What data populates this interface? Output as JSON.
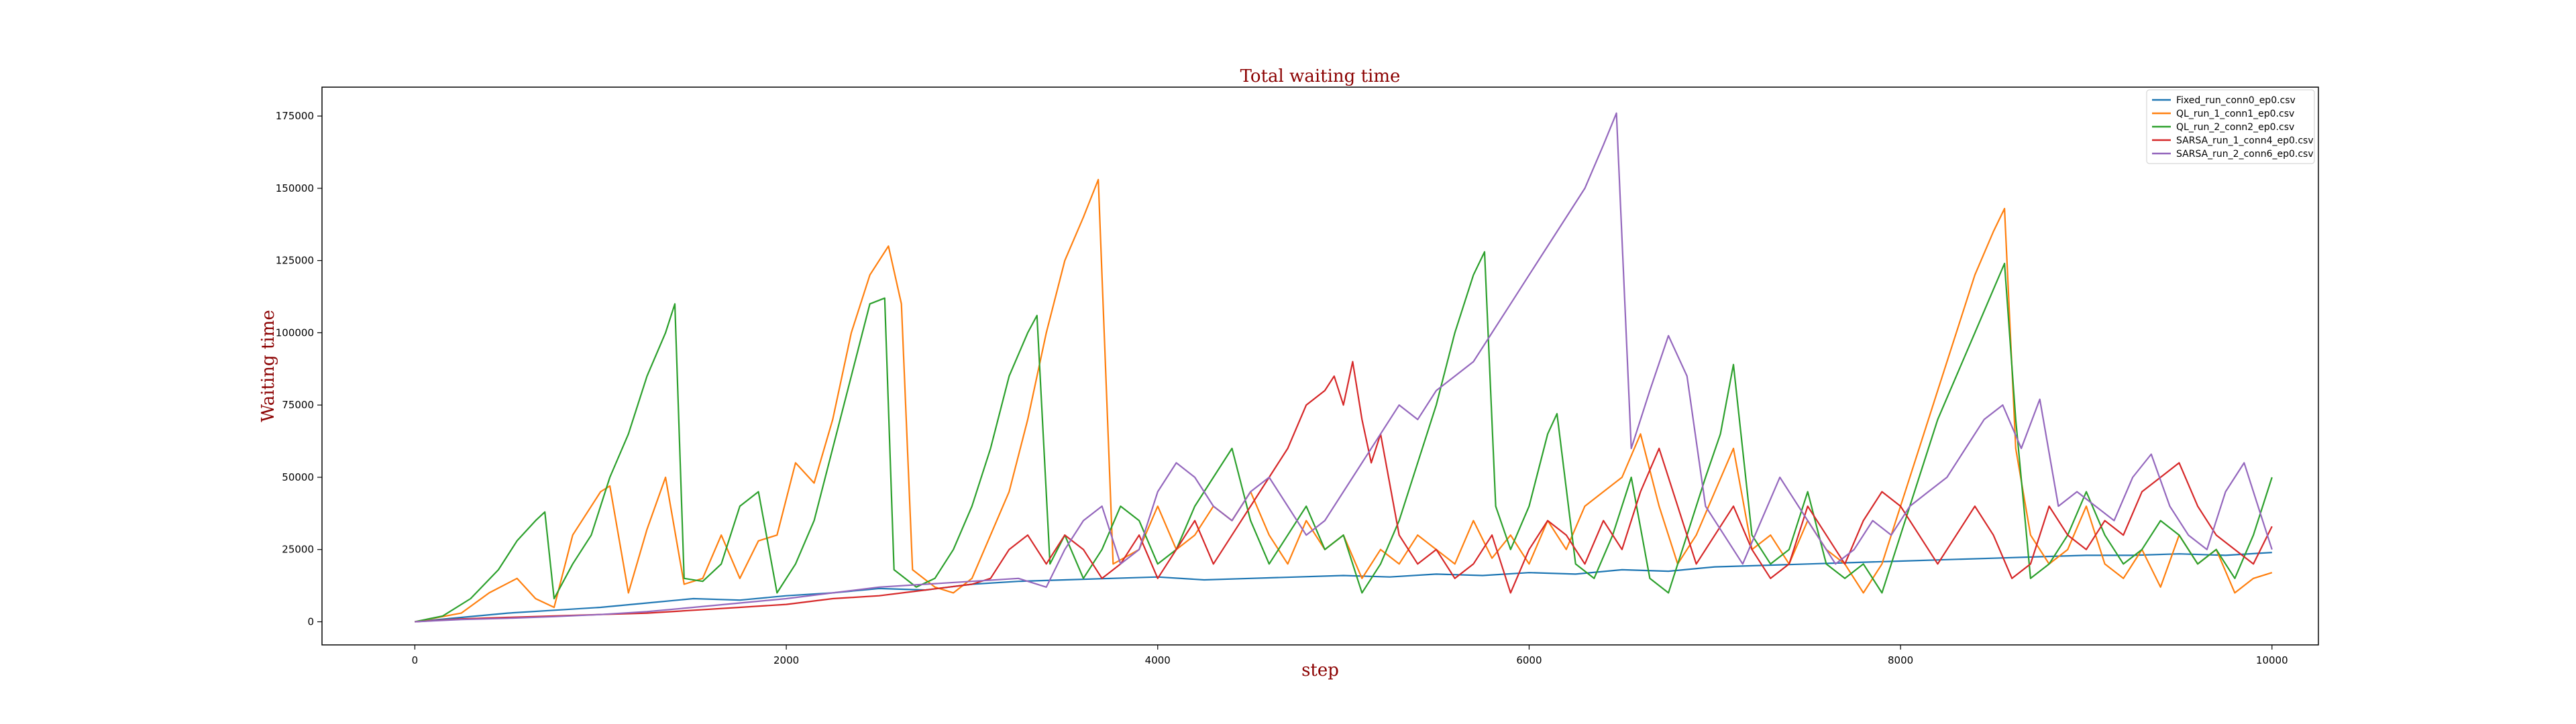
{
  "chart_data": {
    "type": "line",
    "title": "Total waiting time",
    "xlabel": "step",
    "ylabel": "Waiting time",
    "xlim": [
      -500,
      10250
    ],
    "ylim": [
      -8000,
      185000
    ],
    "xticks": [
      0,
      2000,
      4000,
      6000,
      8000,
      10000
    ],
    "yticks": [
      0,
      25000,
      50000,
      75000,
      100000,
      125000,
      150000,
      175000
    ],
    "grid": false,
    "legend_position": "top-right",
    "series": [
      {
        "name": "Fixed_run_conn0_ep0.csv",
        "color": "#1f77b4",
        "x": [
          0,
          250,
          500,
          750,
          1000,
          1250,
          1500,
          1750,
          2000,
          2250,
          2500,
          2750,
          3000,
          3250,
          3500,
          3750,
          4000,
          4250,
          4500,
          4750,
          5000,
          5250,
          5500,
          5750,
          6000,
          6250,
          6500,
          6750,
          7000,
          7250,
          7500,
          7750,
          8000,
          8250,
          8500,
          8750,
          9000,
          9250,
          9500,
          9750,
          10000
        ],
        "y": [
          0,
          1500,
          3000,
          4000,
          5000,
          6500,
          8000,
          7500,
          9000,
          10000,
          11500,
          11000,
          13000,
          14000,
          14500,
          15000,
          15500,
          14500,
          15000,
          15500,
          16000,
          15500,
          16500,
          16000,
          17000,
          16500,
          18000,
          17500,
          19000,
          19500,
          20000,
          20500,
          21000,
          21500,
          22000,
          22500,
          23000,
          23000,
          23500,
          23000,
          24000
        ]
      },
      {
        "name": "QL_run_1_conn1_ep0.csv",
        "color": "#ff7f0e",
        "x": [
          0,
          250,
          400,
          550,
          650,
          750,
          850,
          1000,
          1050,
          1150,
          1250,
          1350,
          1450,
          1550,
          1650,
          1750,
          1850,
          1950,
          2050,
          2150,
          2250,
          2350,
          2450,
          2550,
          2620,
          2680,
          2800,
          2900,
          3000,
          3100,
          3200,
          3300,
          3400,
          3500,
          3600,
          3680,
          3760,
          3900,
          4000,
          4100,
          4200,
          4300,
          4400,
          4500,
          4600,
          4700,
          4800,
          4900,
          5000,
          5100,
          5200,
          5300,
          5400,
          5500,
          5600,
          5700,
          5800,
          5900,
          6000,
          6100,
          6200,
          6300,
          6400,
          6500,
          6600,
          6700,
          6800,
          6900,
          7000,
          7100,
          7200,
          7300,
          7400,
          7500,
          7600,
          7700,
          7800,
          7900,
          8000,
          8100,
          8200,
          8300,
          8400,
          8500,
          8560,
          8620,
          8700,
          8800,
          8900,
          9000,
          9100,
          9200,
          9300,
          9400,
          9500,
          9600,
          9700,
          9800,
          9900,
          10000
        ],
        "y": [
          0,
          3000,
          10000,
          15000,
          8000,
          5000,
          30000,
          45000,
          47000,
          10000,
          32000,
          50000,
          13000,
          15000,
          30000,
          15000,
          28000,
          30000,
          55000,
          48000,
          70000,
          100000,
          120000,
          130000,
          110000,
          18000,
          12000,
          10000,
          15000,
          30000,
          45000,
          70000,
          100000,
          125000,
          140000,
          153000,
          20000,
          25000,
          40000,
          25000,
          30000,
          40000,
          35000,
          45000,
          30000,
          20000,
          35000,
          25000,
          30000,
          15000,
          25000,
          20000,
          30000,
          25000,
          20000,
          35000,
          22000,
          30000,
          20000,
          35000,
          25000,
          40000,
          45000,
          50000,
          65000,
          40000,
          20000,
          30000,
          45000,
          60000,
          25000,
          30000,
          20000,
          35000,
          25000,
          20000,
          10000,
          20000,
          40000,
          60000,
          80000,
          100000,
          120000,
          135000,
          143000,
          60000,
          30000,
          20000,
          25000,
          40000,
          20000,
          15000,
          25000,
          12000,
          30000,
          20000,
          25000,
          10000,
          15000,
          17000
        ]
      },
      {
        "name": "QL_run_2_conn2_ep0.csv",
        "color": "#2ca02c",
        "x": [
          0,
          150,
          300,
          450,
          550,
          650,
          700,
          750,
          850,
          950,
          1050,
          1150,
          1250,
          1350,
          1400,
          1450,
          1550,
          1650,
          1750,
          1850,
          1950,
          2050,
          2150,
          2250,
          2350,
          2450,
          2530,
          2580,
          2700,
          2800,
          2900,
          3000,
          3100,
          3200,
          3300,
          3350,
          3420,
          3500,
          3600,
          3700,
          3800,
          3900,
          4000,
          4100,
          4200,
          4300,
          4400,
          4500,
          4600,
          4700,
          4800,
          4900,
          5000,
          5100,
          5200,
          5300,
          5400,
          5500,
          5600,
          5700,
          5760,
          5820,
          5900,
          6000,
          6100,
          6150,
          6250,
          6350,
          6450,
          6550,
          6650,
          6750,
          6850,
          6950,
          7030,
          7100,
          7200,
          7300,
          7400,
          7500,
          7600,
          7700,
          7800,
          7900,
          8000,
          8100,
          8200,
          8300,
          8400,
          8500,
          8560,
          8620,
          8700,
          8800,
          8900,
          9000,
          9100,
          9200,
          9300,
          9400,
          9500,
          9600,
          9700,
          9800,
          9900,
          10000
        ],
        "y": [
          0,
          2000,
          8000,
          18000,
          28000,
          35000,
          38000,
          8000,
          20000,
          30000,
          50000,
          65000,
          85000,
          100000,
          110000,
          15000,
          14000,
          20000,
          40000,
          45000,
          10000,
          20000,
          35000,
          60000,
          85000,
          110000,
          112000,
          18000,
          12000,
          15000,
          25000,
          40000,
          60000,
          85000,
          100000,
          106000,
          20000,
          30000,
          15000,
          25000,
          40000,
          35000,
          20000,
          25000,
          40000,
          50000,
          60000,
          35000,
          20000,
          30000,
          40000,
          25000,
          30000,
          10000,
          20000,
          35000,
          55000,
          75000,
          100000,
          120000,
          128000,
          40000,
          25000,
          40000,
          65000,
          72000,
          20000,
          15000,
          30000,
          50000,
          15000,
          10000,
          30000,
          50000,
          65000,
          89000,
          30000,
          20000,
          25000,
          45000,
          20000,
          15000,
          20000,
          10000,
          30000,
          50000,
          70000,
          85000,
          100000,
          115000,
          124000,
          70000,
          15000,
          20000,
          30000,
          45000,
          30000,
          20000,
          25000,
          35000,
          30000,
          20000,
          25000,
          15000,
          30000,
          50000
        ]
      },
      {
        "name": "SARSA_run_1_conn4_ep0.csv",
        "color": "#d62728",
        "x": [
          0,
          250,
          500,
          750,
          1000,
          1250,
          1500,
          1750,
          2000,
          2250,
          2500,
          2750,
          3000,
          3100,
          3200,
          3300,
          3400,
          3500,
          3600,
          3700,
          3800,
          3900,
          4000,
          4100,
          4200,
          4300,
          4400,
          4500,
          4600,
          4700,
          4800,
          4900,
          4950,
          5000,
          5050,
          5100,
          5150,
          5200,
          5300,
          5400,
          5500,
          5600,
          5700,
          5800,
          5900,
          6000,
          6100,
          6200,
          6300,
          6400,
          6500,
          6600,
          6700,
          6800,
          6900,
          7000,
          7100,
          7200,
          7300,
          7400,
          7500,
          7600,
          7700,
          7800,
          7900,
          8000,
          8100,
          8200,
          8300,
          8400,
          8500,
          8600,
          8700,
          8800,
          8900,
          9000,
          9100,
          9200,
          9300,
          9400,
          9500,
          9600,
          9700,
          9800,
          9900,
          10000
        ],
        "y": [
          0,
          1000,
          1500,
          2000,
          2500,
          3000,
          4000,
          5000,
          6000,
          8000,
          9000,
          11000,
          13000,
          15000,
          25000,
          30000,
          20000,
          30000,
          25000,
          15000,
          20000,
          30000,
          15000,
          25000,
          35000,
          20000,
          30000,
          40000,
          50000,
          60000,
          75000,
          80000,
          85000,
          75000,
          90000,
          70000,
          55000,
          65000,
          30000,
          20000,
          25000,
          15000,
          20000,
          30000,
          10000,
          25000,
          35000,
          30000,
          20000,
          35000,
          25000,
          45000,
          60000,
          40000,
          20000,
          30000,
          40000,
          25000,
          15000,
          20000,
          40000,
          30000,
          20000,
          35000,
          45000,
          40000,
          30000,
          20000,
          30000,
          40000,
          30000,
          15000,
          20000,
          40000,
          30000,
          25000,
          35000,
          30000,
          45000,
          50000,
          55000,
          40000,
          30000,
          25000,
          20000,
          33000
        ]
      },
      {
        "name": "SARSA_run_2_conn6_ep0.csv",
        "color": "#9467bd",
        "x": [
          0,
          250,
          500,
          750,
          1000,
          1250,
          1500,
          1750,
          2000,
          2250,
          2500,
          2750,
          3000,
          3250,
          3400,
          3500,
          3600,
          3700,
          3800,
          3900,
          4000,
          4100,
          4200,
          4300,
          4400,
          4500,
          4600,
          4700,
          4800,
          4900,
          5000,
          5100,
          5200,
          5300,
          5400,
          5500,
          5600,
          5700,
          5800,
          5900,
          6000,
          6100,
          6200,
          6300,
          6400,
          6470,
          6550,
          6650,
          6750,
          6850,
          6950,
          7050,
          7150,
          7250,
          7350,
          7450,
          7550,
          7650,
          7750,
          7850,
          7950,
          8050,
          8150,
          8250,
          8350,
          8450,
          8550,
          8650,
          8750,
          8850,
          8950,
          9050,
          9150,
          9250,
          9350,
          9450,
          9550,
          9650,
          9750,
          9850,
          9950,
          10000
        ],
        "y": [
          0,
          800,
          1200,
          1800,
          2500,
          3500,
          5000,
          6500,
          8000,
          10000,
          12000,
          13000,
          14000,
          15000,
          12000,
          25000,
          35000,
          40000,
          20000,
          25000,
          45000,
          55000,
          50000,
          40000,
          35000,
          45000,
          50000,
          40000,
          30000,
          35000,
          45000,
          55000,
          65000,
          75000,
          70000,
          80000,
          85000,
          90000,
          100000,
          110000,
          120000,
          130000,
          140000,
          150000,
          165000,
          176000,
          60000,
          80000,
          99000,
          85000,
          40000,
          30000,
          20000,
          35000,
          50000,
          40000,
          30000,
          20000,
          25000,
          35000,
          30000,
          40000,
          45000,
          50000,
          60000,
          70000,
          75000,
          60000,
          77000,
          40000,
          45000,
          40000,
          35000,
          50000,
          58000,
          40000,
          30000,
          25000,
          45000,
          55000,
          35000,
          25000
        ]
      }
    ]
  }
}
